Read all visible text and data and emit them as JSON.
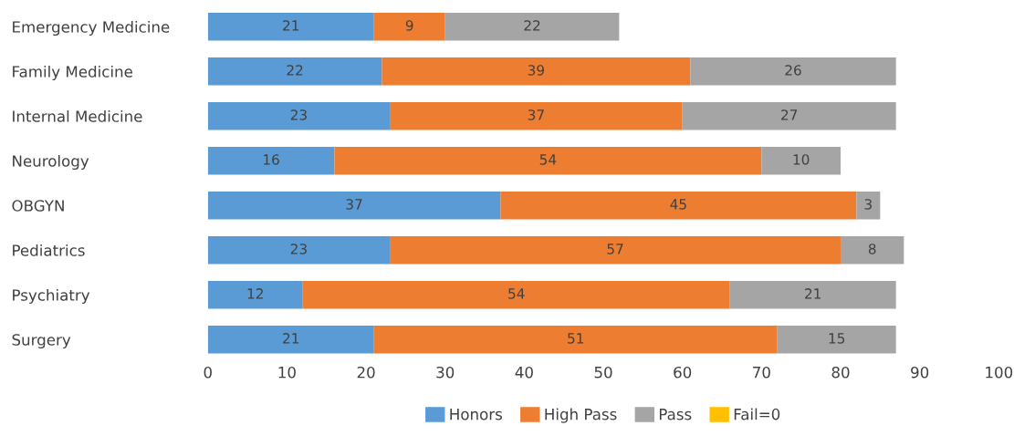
{
  "chart_data": {
    "type": "bar",
    "orientation": "horizontal",
    "stacked": true,
    "data_labels": true,
    "legend": "bottom",
    "grid": false,
    "categories": [
      "Emergency Medicine",
      "Family Medicine",
      "Internal Medicine",
      "Neurology",
      "OBGYN",
      "Pediatrics",
      "Psychiatry",
      "Surgery"
    ],
    "series": [
      {
        "name": "Honors",
        "color": "#5b9bd5",
        "values": [
          21,
          22,
          23,
          16,
          37,
          23,
          12,
          21
        ]
      },
      {
        "name": "High Pass",
        "color": "#ed7d31",
        "values": [
          9,
          39,
          37,
          54,
          45,
          57,
          54,
          51
        ]
      },
      {
        "name": "Pass",
        "color": "#a5a5a5",
        "values": [
          22,
          26,
          27,
          10,
          3,
          8,
          21,
          15
        ]
      },
      {
        "name": "Fail=0",
        "color": "#ffc000",
        "values": [
          null,
          null,
          null,
          null,
          null,
          null,
          null,
          null
        ]
      }
    ],
    "xlim": [
      0,
      100
    ],
    "xticks": [
      0,
      10,
      20,
      30,
      40,
      50,
      60,
      70,
      80,
      90,
      100
    ]
  }
}
